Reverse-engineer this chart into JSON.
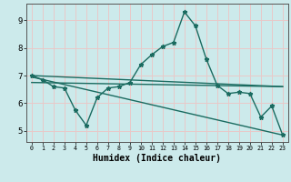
{
  "xlabel": "Humidex (Indice chaleur)",
  "bg_color": "#cceaeb",
  "grid_color": "#e8c8c8",
  "line_color": "#1a6b60",
  "xlim": [
    -0.5,
    23.5
  ],
  "ylim": [
    4.6,
    9.6
  ],
  "yticks": [
    5,
    6,
    7,
    8,
    9
  ],
  "xticks": [
    0,
    1,
    2,
    3,
    4,
    5,
    6,
    7,
    8,
    9,
    10,
    11,
    12,
    13,
    14,
    15,
    16,
    17,
    18,
    19,
    20,
    21,
    22,
    23
  ],
  "series_main": {
    "x": [
      0,
      1,
      2,
      3,
      4,
      5,
      6,
      7,
      8,
      9,
      10,
      11,
      12,
      13,
      14,
      15,
      16,
      17,
      18,
      19,
      20,
      21,
      22,
      23
    ],
    "y": [
      7.0,
      6.85,
      6.6,
      6.55,
      5.75,
      5.2,
      6.2,
      6.55,
      6.6,
      6.75,
      7.4,
      7.75,
      8.05,
      8.2,
      9.3,
      8.8,
      7.6,
      6.65,
      6.35,
      6.4,
      6.35,
      5.5,
      5.9,
      4.85
    ]
  },
  "line1": {
    "x": [
      0,
      23
    ],
    "y": [
      7.0,
      6.6
    ]
  },
  "line2": {
    "x": [
      0,
      23
    ],
    "y": [
      6.95,
      4.85
    ]
  },
  "line3": {
    "x": [
      0,
      23
    ],
    "y": [
      6.75,
      6.6
    ]
  }
}
